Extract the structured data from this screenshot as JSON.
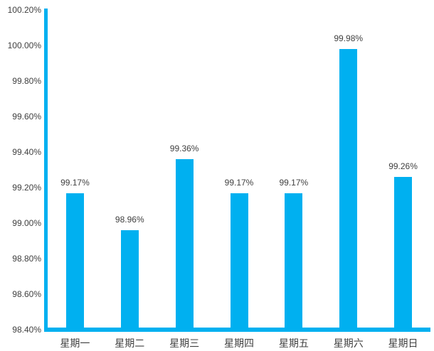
{
  "chart_data": {
    "type": "bar",
    "title": "",
    "xlabel": "",
    "ylabel": "",
    "categories": [
      "星期一",
      "星期二",
      "星期三",
      "星期四",
      "星期五",
      "星期六",
      "星期日"
    ],
    "values": [
      99.17,
      98.96,
      99.36,
      99.17,
      99.17,
      99.98,
      99.26
    ],
    "value_labels": [
      "99.17%",
      "98.96%",
      "99.36%",
      "99.17%",
      "99.17%",
      "99.98%",
      "99.26%"
    ],
    "ylim": [
      98.4,
      100.2
    ],
    "y_tick_step": 0.2,
    "y_ticks": [
      "100.20%",
      "100.00%",
      "99.80%",
      "99.60%",
      "99.40%",
      "99.20%",
      "99.00%",
      "98.80%",
      "98.60%",
      "98.40%"
    ],
    "grid": false,
    "legend": "none",
    "bar_color": "#00b0f0",
    "axis_color": "#00b0f0",
    "label_color": "#404040",
    "background_color": "#ffffff"
  }
}
